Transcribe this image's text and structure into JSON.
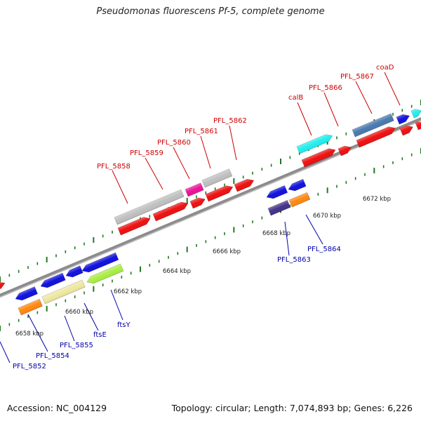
{
  "title": "Pseudomonas fluorescens Pf-5, complete genome",
  "accession": "Accession: NC_004129",
  "summary": "Topology: circular; Length: 7,074,893 bp; Genes: 6,226",
  "colors": {
    "forward_label": "#cc0000",
    "reverse_label": "#0000aa",
    "backbone": "#8c8c8c",
    "tick": "#1f7a1f"
  },
  "scale_ticks": [
    "6658 kbp",
    "6660 kbp",
    "6662 kbp",
    "6664 kbp",
    "6666 kbp",
    "6668 kbp",
    "6670 kbp",
    "6672 kbp"
  ],
  "forward_labels": [
    "PFL_5858",
    "PFL_5859",
    "PFL_5860",
    "PFL_5861",
    "PFL_5862",
    "calB",
    "PFL_5866",
    "PFL_5867",
    "coaD"
  ],
  "reverse_labels": [
    "PFL_5852",
    "PFL_5854",
    "PFL_5855",
    "ftsE",
    "ftsY",
    "PFL_5863",
    "PFL_5864"
  ]
}
